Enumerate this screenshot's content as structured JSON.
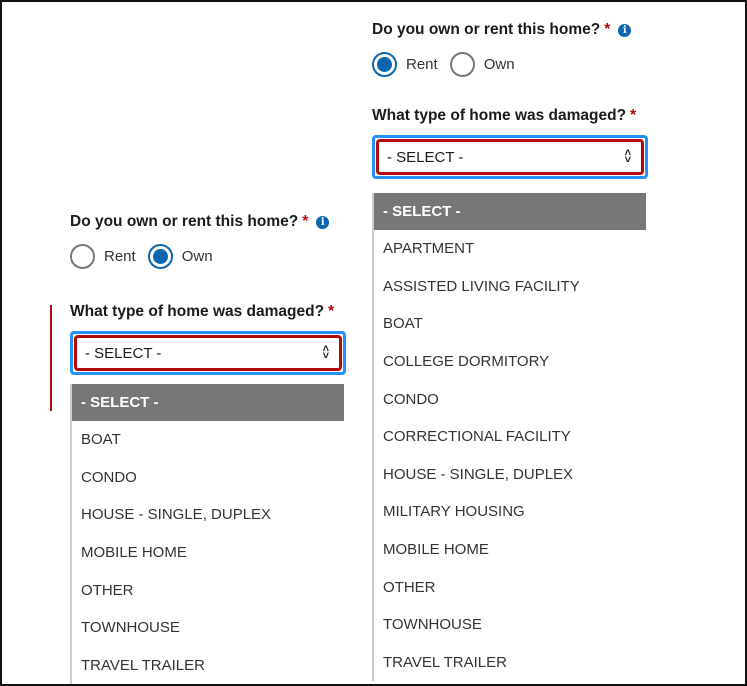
{
  "left": {
    "ownership_question": "Do you own or rent this home?",
    "required_mark": "*",
    "info_icon": "i",
    "options": {
      "rent": "Rent",
      "own": "Own"
    },
    "selected": "own",
    "home_type_question": "What type of home was damaged?",
    "select_value": "- SELECT -",
    "dropdown_items": [
      "- SELECT -",
      "BOAT",
      "CONDO",
      "HOUSE - SINGLE, DUPLEX",
      "MOBILE HOME",
      "OTHER",
      "TOWNHOUSE",
      "TRAVEL TRAILER"
    ]
  },
  "right": {
    "ownership_question": "Do you own or rent this home?",
    "required_mark": "*",
    "info_icon": "i",
    "options": {
      "rent": "Rent",
      "own": "Own"
    },
    "selected": "rent",
    "home_type_question": "What type of home was damaged?",
    "select_value": "- SELECT -",
    "dropdown_items": [
      "- SELECT -",
      "APARTMENT",
      "ASSISTED LIVING FACILITY",
      "BOAT",
      "COLLEGE DORMITORY",
      "CONDO",
      "CORRECTIONAL FACILITY",
      "HOUSE - SINGLE, DUPLEX",
      "MILITARY HOUSING",
      "MOBILE HOME",
      "OTHER",
      "TOWNHOUSE",
      "TRAVEL TRAILER"
    ]
  },
  "colors": {
    "primary": "#0b66ad",
    "error": "#b50909",
    "focus": "#2491ff",
    "selected_option": "#777777"
  }
}
